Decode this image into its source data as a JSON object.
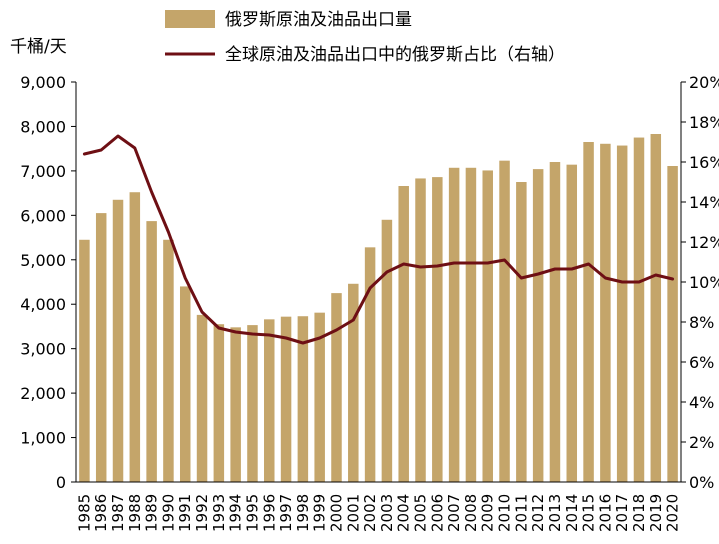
{
  "chart_data": {
    "type": "bar+line",
    "unit_left": "千桶/天",
    "categories": [
      "1985",
      "1986",
      "1987",
      "1988",
      "1989",
      "1990",
      "1991",
      "1992",
      "1993",
      "1994",
      "1995",
      "1996",
      "1997",
      "1998",
      "1999",
      "2000",
      "2001",
      "2002",
      "2003",
      "2004",
      "2005",
      "2006",
      "2007",
      "2008",
      "2009",
      "2010",
      "2011",
      "2012",
      "2013",
      "2014",
      "2015",
      "2016",
      "2017",
      "2018",
      "2019",
      "2020"
    ],
    "series": [
      {
        "name": "俄罗斯原油及油品出口量",
        "type": "bar",
        "axis": "left",
        "color": "#c4a56a",
        "values": [
          5450,
          6050,
          6350,
          6520,
          5870,
          5450,
          4400,
          3760,
          3550,
          3480,
          3530,
          3660,
          3720,
          3730,
          3810,
          4250,
          4460,
          5280,
          5900,
          6660,
          6830,
          6860,
          7070,
          7070,
          7010,
          7230,
          6750,
          7040,
          7200,
          7140,
          7650,
          7610,
          7570,
          7750,
          7830,
          7110
        ]
      },
      {
        "name": "全球原油及油品出口中的俄罗斯占比（右轴）",
        "type": "line",
        "axis": "right",
        "color": "#6e0f14",
        "values": [
          16.4,
          16.6,
          17.3,
          16.7,
          14.5,
          12.5,
          10.2,
          8.5,
          7.7,
          7.5,
          7.4,
          7.35,
          7.2,
          6.95,
          7.2,
          7.6,
          8.1,
          9.7,
          10.5,
          10.9,
          10.75,
          10.8,
          10.95,
          10.95,
          10.95,
          11.1,
          10.2,
          10.4,
          10.65,
          10.65,
          10.9,
          10.2,
          10.0,
          10.0,
          10.35,
          10.15
        ]
      }
    ],
    "ylim_left": [
      0,
      9000
    ],
    "yticks_left": [
      "0",
      "1,000",
      "2,000",
      "3,000",
      "4,000",
      "5,000",
      "6,000",
      "7,000",
      "8,000",
      "9,000"
    ],
    "ylim_right": [
      0,
      20
    ],
    "yticks_right": [
      "0%",
      "2%",
      "4%",
      "6%",
      "8%",
      "10%",
      "12%",
      "14%",
      "16%",
      "18%",
      "20%"
    ],
    "grid": false,
    "legend_position": "top"
  }
}
